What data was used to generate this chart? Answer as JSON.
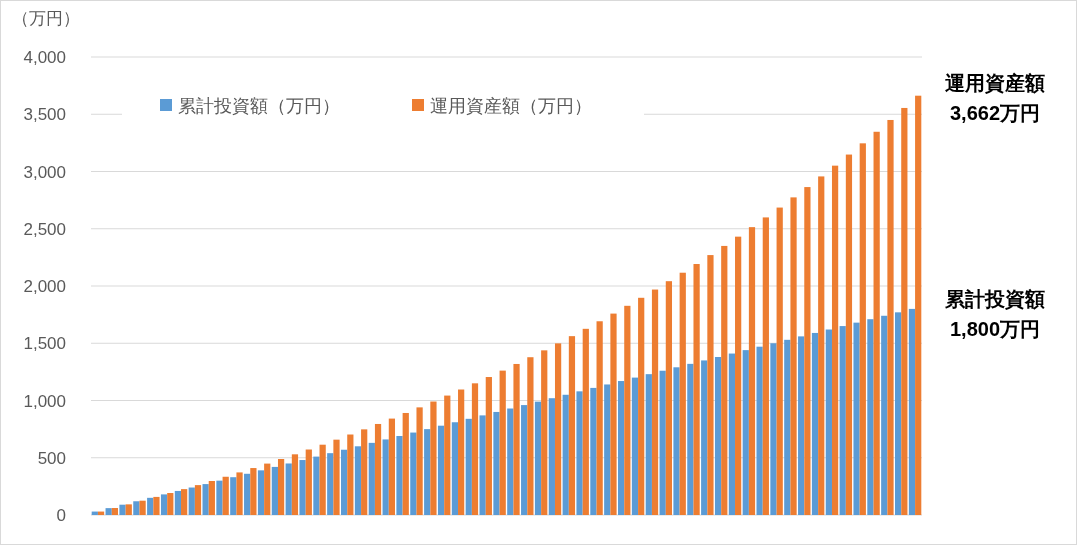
{
  "chart_data": {
    "type": "bar",
    "ylabel": "（万円）",
    "categories": [
      null,
      null,
      null,
      null,
      null,
      null,
      null,
      null,
      null,
      null,
      null,
      null,
      null,
      null,
      null,
      null,
      null,
      null,
      null,
      null,
      null,
      null,
      null,
      null,
      null,
      null,
      null,
      null,
      null,
      null,
      null,
      null,
      null,
      null,
      null,
      null,
      null,
      null,
      null,
      null,
      null,
      null,
      null,
      null,
      null,
      null,
      null,
      null,
      null,
      null,
      null,
      null,
      null,
      null,
      null,
      null,
      null,
      null,
      null,
      null
    ],
    "series": [
      {
        "name": "累計投資額（万円）",
        "color": "#5b9bd5",
        "values": [
          30,
          60,
          90,
          120,
          150,
          180,
          210,
          240,
          270,
          300,
          330,
          360,
          390,
          420,
          450,
          480,
          510,
          540,
          570,
          600,
          630,
          660,
          690,
          720,
          750,
          780,
          810,
          840,
          870,
          900,
          930,
          960,
          990,
          1020,
          1050,
          1080,
          1110,
          1140,
          1170,
          1200,
          1230,
          1260,
          1290,
          1320,
          1350,
          1380,
          1410,
          1440,
          1470,
          1500,
          1530,
          1560,
          1590,
          1620,
          1650,
          1680,
          1710,
          1740,
          1770,
          1800
        ]
      },
      {
        "name": "運用資産額（万円）",
        "color": "#ed7d31",
        "values": [
          30,
          61,
          93,
          125,
          158,
          192,
          226,
          261,
          297,
          334,
          372,
          410,
          449,
          489,
          530,
          572,
          614,
          658,
          703,
          748,
          795,
          842,
          891,
          940,
          991,
          1043,
          1096,
          1150,
          1205,
          1261,
          1319,
          1378,
          1438,
          1499,
          1562,
          1626,
          1692,
          1759,
          1827,
          1897,
          1969,
          2042,
          2116,
          2192,
          2270,
          2350,
          2431,
          2514,
          2599,
          2685,
          2774,
          2864,
          2957,
          3051,
          3148,
          3246,
          3347,
          3450,
          3555,
          3662
        ]
      }
    ],
    "ylim": [
      0,
      4000
    ],
    "yticks": [
      {
        "value": 0,
        "label": "0"
      },
      {
        "value": 500,
        "label": "500"
      },
      {
        "value": 1000,
        "label": "1,000"
      },
      {
        "value": 1500,
        "label": "1,500"
      },
      {
        "value": 2000,
        "label": "2,000"
      },
      {
        "value": 2500,
        "label": "2,500"
      },
      {
        "value": 3000,
        "label": "3,000"
      },
      {
        "value": 3500,
        "label": "3,500"
      },
      {
        "value": 4000,
        "label": "4,000"
      }
    ],
    "grid": "y",
    "legend": "top",
    "annotations": [
      "運用資産額",
      "3,662万円",
      "累計投資額",
      "1,800万円"
    ]
  }
}
